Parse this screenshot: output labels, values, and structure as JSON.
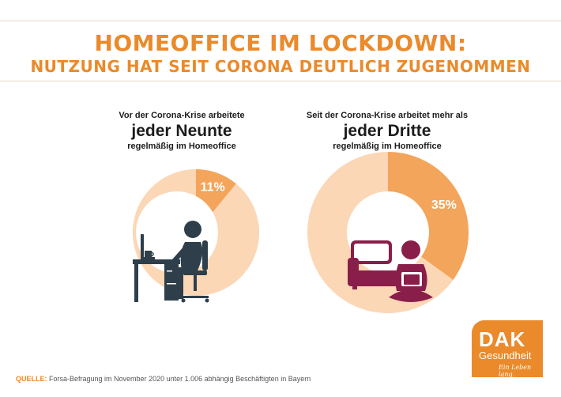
{
  "header": {
    "title": "HOMEOFFICE IM LOCKDOWN:",
    "subtitle": "NUTZUNG HAT SEIT CORONA DEUTLICH ZUGENOMMEN"
  },
  "left": {
    "line1": "Vor der Corona-Krise arbeitete",
    "emphasis": "jeder Neunte",
    "line3": "regelmäßig im Homeoffice"
  },
  "right": {
    "line1": "Seit der Corona-Krise arbeitet mehr als",
    "emphasis": "jeder Dritte",
    "line3": "regelmäßig im Homeoffice"
  },
  "chart_data": [
    {
      "type": "pie",
      "slices": [
        {
          "label": "11%",
          "value": 11,
          "color": "#f3a55b"
        },
        {
          "label": "",
          "value": 89,
          "color": "#fbd7b5"
        }
      ]
    },
    {
      "type": "pie",
      "slices": [
        {
          "label": "35%",
          "value": 35,
          "color": "#f3a55b"
        },
        {
          "label": "",
          "value": 65,
          "color": "#fbd7b5"
        }
      ]
    }
  ],
  "source": {
    "label": "QUELLE:",
    "text": "Forsa-Befragung im November 2020 unter 1.006 abhängig Beschäftigten in Bayern"
  },
  "logo": {
    "brand": "DAK",
    "name": "Gesundheit",
    "slogan": "Ein Leben lang."
  },
  "colors": {
    "accent": "#ea8a2a",
    "slice_highlight": "#f3a55b",
    "slice_rest": "#fbd7b5",
    "icon_office": "#2e3f4b",
    "icon_home": "#8a1e4a"
  },
  "icons": [
    "office-worker-icon",
    "home-worker-icon"
  ]
}
